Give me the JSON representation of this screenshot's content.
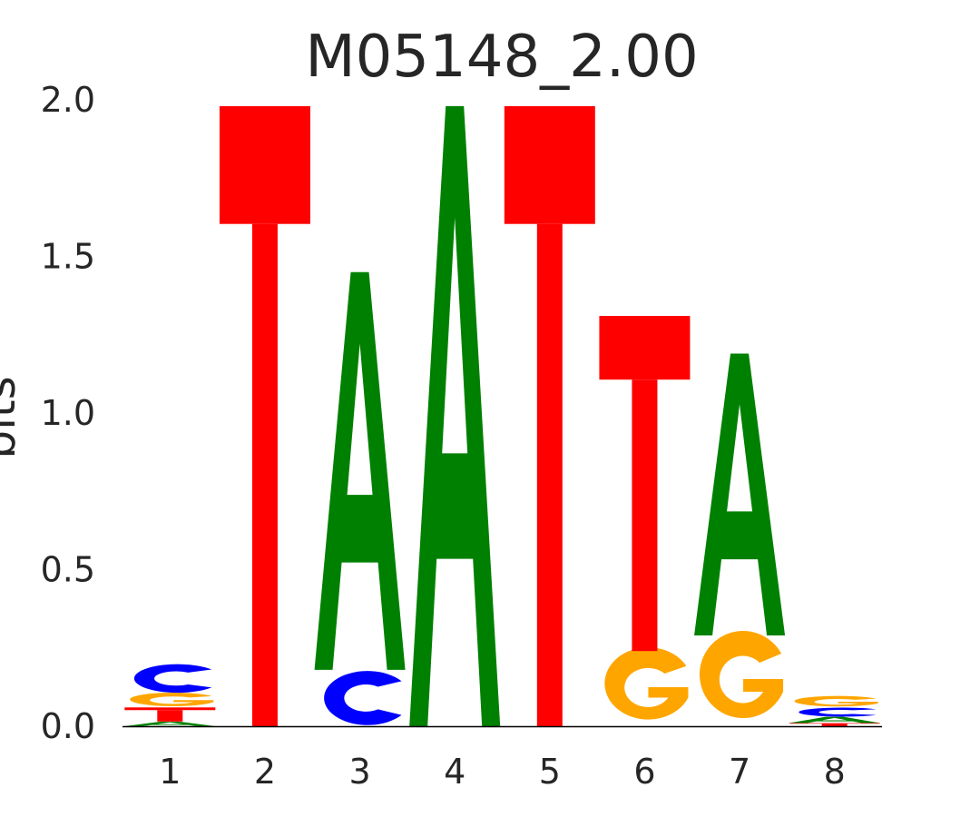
{
  "chart_data": {
    "type": "sequence-logo",
    "title": "M05148_2.00",
    "xlabel": "",
    "ylabel": "bits",
    "ylim": [
      0,
      2.0
    ],
    "yticks": [
      "0.0",
      "0.5",
      "1.0",
      "1.5",
      "2.0"
    ],
    "ytick_values": [
      0,
      0.5,
      1.0,
      1.5,
      2.0
    ],
    "categories": [
      "1",
      "2",
      "3",
      "4",
      "5",
      "6",
      "7",
      "8"
    ],
    "colors": {
      "A": "#008000",
      "C": "#0000ff",
      "G": "#ffa500",
      "T": "#ff0000"
    },
    "positions": [
      {
        "position": "1",
        "letters": [
          {
            "base": "A",
            "from": 0.0,
            "to": 0.015
          },
          {
            "base": "T",
            "from": 0.015,
            "to": 0.06
          },
          {
            "base": "G",
            "from": 0.06,
            "to": 0.105
          },
          {
            "base": "C",
            "from": 0.105,
            "to": 0.2
          }
        ]
      },
      {
        "position": "2",
        "letters": [
          {
            "base": "T",
            "from": 0.0,
            "to": 1.98
          }
        ]
      },
      {
        "position": "3",
        "letters": [
          {
            "base": "C",
            "from": 0.0,
            "to": 0.18
          },
          {
            "base": "A",
            "from": 0.18,
            "to": 1.45
          }
        ]
      },
      {
        "position": "4",
        "letters": [
          {
            "base": "A",
            "from": 0.0,
            "to": 1.98
          }
        ]
      },
      {
        "position": "5",
        "letters": [
          {
            "base": "T",
            "from": 0.0,
            "to": 1.98
          }
        ]
      },
      {
        "position": "6",
        "letters": [
          {
            "base": "G",
            "from": 0.0,
            "to": 0.24
          },
          {
            "base": "T",
            "from": 0.24,
            "to": 1.31
          }
        ]
      },
      {
        "position": "7",
        "letters": [
          {
            "base": "G",
            "from": 0.0,
            "to": 0.29
          },
          {
            "base": "A",
            "from": 0.29,
            "to": 1.19
          }
        ]
      },
      {
        "position": "8",
        "letters": [
          {
            "base": "T",
            "from": 0.0,
            "to": 0.01
          },
          {
            "base": "A",
            "from": 0.01,
            "to": 0.03
          },
          {
            "base": "C",
            "from": 0.03,
            "to": 0.06
          },
          {
            "base": "G",
            "from": 0.06,
            "to": 0.095
          }
        ]
      }
    ]
  }
}
